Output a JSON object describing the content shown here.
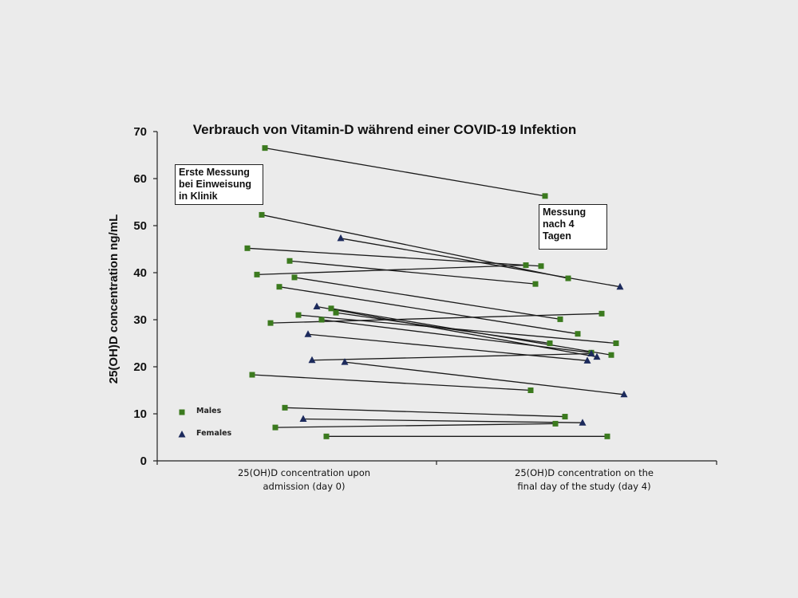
{
  "chart_data": {
    "type": "line",
    "title": "Verbrauch von Vitamin-D während einer COVID-19 Infektion",
    "ylabel": "25(OH)D concentration ng/mL",
    "ylim": [
      0,
      70
    ],
    "yticks": [
      0,
      10,
      20,
      30,
      40,
      50,
      60,
      70
    ],
    "categories": [
      [
        "25(OH)D concentration upon",
        "admission (day 0)"
      ],
      [
        "25(OH)D concentration on the",
        "final day of the study (day 4)"
      ]
    ],
    "legend": [
      {
        "label": "Males",
        "marker": "square",
        "color": "#3b7a1e"
      },
      {
        "label": "Females",
        "marker": "triangle",
        "color": "#1c2a5c"
      }
    ],
    "annotations": [
      {
        "lines": [
          "Erste Messung",
          "bei Einweisung",
          "in Klinik"
        ]
      },
      {
        "lines": [
          "Messung",
          "nach 4",
          "Tagen"
        ]
      }
    ],
    "pairs": [
      {
        "sex": "M",
        "day0": 66.5,
        "day4": 56.3
      },
      {
        "sex": "M",
        "day0": 52.3,
        "day4": 38.8
      },
      {
        "sex": "M",
        "day0": 45.2,
        "day4": 41.4
      },
      {
        "sex": "M",
        "day0": 42.5,
        "day4": 37.6
      },
      {
        "sex": "M",
        "day0": 39.6,
        "day4": 41.6
      },
      {
        "sex": "M",
        "day0": 39.0,
        "day4": 30.1
      },
      {
        "sex": "M",
        "day0": 37.0,
        "day4": 27.0
      },
      {
        "sex": "M",
        "day0": 32.4,
        "day4": 22.5
      },
      {
        "sex": "M",
        "day0": 31.5,
        "day4": 25.0
      },
      {
        "sex": "M",
        "day0": 31.0,
        "day4": 25.0
      },
      {
        "sex": "M",
        "day0": 30.0,
        "day4": 23.0
      },
      {
        "sex": "M",
        "day0": 29.3,
        "day4": 31.3
      },
      {
        "sex": "M",
        "day0": 18.3,
        "day4": 15.0
      },
      {
        "sex": "M",
        "day0": 11.3,
        "day4": 9.4
      },
      {
        "sex": "M",
        "day0": 7.1,
        "day4": 7.9
      },
      {
        "sex": "M",
        "day0": 5.2,
        "day4": 5.2
      },
      {
        "sex": "F",
        "day0": 47.3,
        "day4": 37.0
      },
      {
        "sex": "F",
        "day0": 32.8,
        "day4": 22.1
      },
      {
        "sex": "F",
        "day0": 26.9,
        "day4": 21.3
      },
      {
        "sex": "F",
        "day0": 21.4,
        "day4": 22.8
      },
      {
        "sex": "F",
        "day0": 21.0,
        "day4": 14.1
      },
      {
        "sex": "F",
        "day0": 8.9,
        "day4": 8.1
      }
    ]
  }
}
